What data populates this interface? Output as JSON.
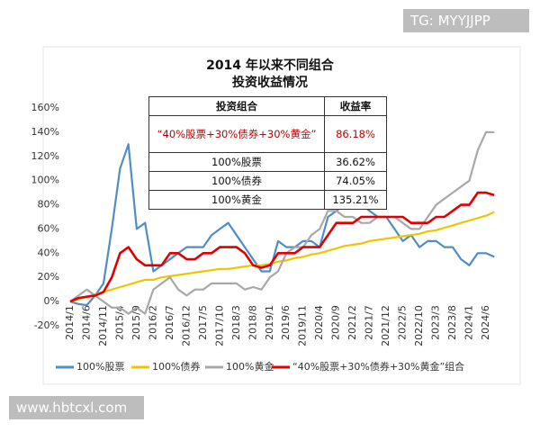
{
  "watermark_top": "TG: MYYJJPP",
  "watermark_bottom": "www.hbtcxl.com",
  "chart_data": {
    "type": "line",
    "title": [
      "2014 年以来不同组合",
      "投资收益情况"
    ],
    "categories": [
      "2014/1",
      null,
      "2014/6",
      null,
      "2014/11",
      null,
      "2015/4",
      null,
      "2015/9",
      null,
      "2016/2",
      null,
      "2016/7",
      null,
      "2016/12",
      null,
      "2017/5",
      null,
      "2017/10",
      null,
      "2018/3",
      null,
      "2018/8",
      null,
      "2019/1",
      null,
      "2019/6",
      null,
      "2019/11",
      null,
      "2020/4",
      null,
      "2020/9",
      null,
      "2021/2",
      null,
      "2021/7",
      null,
      "2021/12",
      null,
      "2022/5",
      null,
      "2022/10",
      null,
      "2023/3",
      null,
      "2023/8",
      null,
      "2024/1",
      null,
      "2024/6",
      null
    ],
    "ylim": [
      -20,
      160
    ],
    "yticks": [
      {
        "value": -20,
        "label": "-20%"
      },
      {
        "value": 0,
        "label": "0%"
      },
      {
        "value": 20,
        "label": "20%"
      },
      {
        "value": 40,
        "label": "40%"
      },
      {
        "value": 60,
        "label": "60%"
      },
      {
        "value": 80,
        "label": "80%"
      },
      {
        "value": 100,
        "label": "100%"
      },
      {
        "value": 120,
        "label": "120%"
      },
      {
        "value": 140,
        "label": "140%"
      },
      {
        "value": 160,
        "label": "160%"
      }
    ],
    "grid": false,
    "series": [
      {
        "name": "100%股票",
        "color": "#4f8dc9",
        "values": [
          0,
          -2,
          -3,
          5,
          15,
          60,
          110,
          130,
          60,
          65,
          25,
          30,
          35,
          40,
          45,
          45,
          45,
          55,
          60,
          65,
          55,
          45,
          35,
          25,
          25,
          50,
          45,
          45,
          50,
          50,
          45,
          70,
          75,
          80,
          90,
          80,
          75,
          70,
          70,
          60,
          50,
          55,
          45,
          50,
          50,
          45,
          45,
          35,
          30,
          40,
          40,
          37
        ]
      },
      {
        "name": "100%债券",
        "color": "#f2c400",
        "values": [
          0,
          2,
          4,
          6,
          8,
          10,
          12,
          14,
          16,
          18,
          18,
          20,
          21,
          22,
          23,
          24,
          25,
          26,
          27,
          27,
          28,
          29,
          30,
          30,
          31,
          33,
          34,
          36,
          37,
          39,
          40,
          42,
          44,
          46,
          47,
          48,
          50,
          51,
          52,
          53,
          54,
          55,
          56,
          58,
          59,
          61,
          63,
          65,
          67,
          69,
          71,
          74
        ]
      },
      {
        "name": "100%黄金",
        "color": "#a8a8a8",
        "values": [
          0,
          5,
          10,
          5,
          0,
          -5,
          -5,
          -10,
          -5,
          -10,
          10,
          15,
          20,
          10,
          5,
          10,
          10,
          15,
          15,
          15,
          15,
          10,
          12,
          10,
          20,
          25,
          40,
          45,
          45,
          55,
          60,
          75,
          75,
          70,
          70,
          65,
          65,
          70,
          70,
          70,
          65,
          60,
          60,
          70,
          80,
          85,
          90,
          95,
          100,
          125,
          140,
          140
        ]
      },
      {
        "name": "“40%股票+30%债券+30%黄金”组合",
        "color": "#e00000",
        "values": [
          0,
          3,
          4,
          5,
          8,
          20,
          40,
          45,
          35,
          30,
          30,
          30,
          40,
          40,
          35,
          35,
          40,
          40,
          45,
          45,
          45,
          40,
          30,
          28,
          30,
          40,
          40,
          40,
          45,
          45,
          45,
          55,
          65,
          65,
          65,
          70,
          70,
          70,
          70,
          70,
          70,
          65,
          65,
          65,
          70,
          70,
          75,
          80,
          80,
          90,
          90,
          88
        ]
      }
    ]
  },
  "table": {
    "header": [
      "投资组合",
      "收益率"
    ],
    "rows": [
      [
        "“40%股票+30%债券+30%黄金”",
        "86.18%"
      ],
      [
        "100%股票",
        "36.62%"
      ],
      [
        "100%债券",
        "74.05%"
      ],
      [
        "100%黄金",
        "135.21%"
      ]
    ]
  }
}
